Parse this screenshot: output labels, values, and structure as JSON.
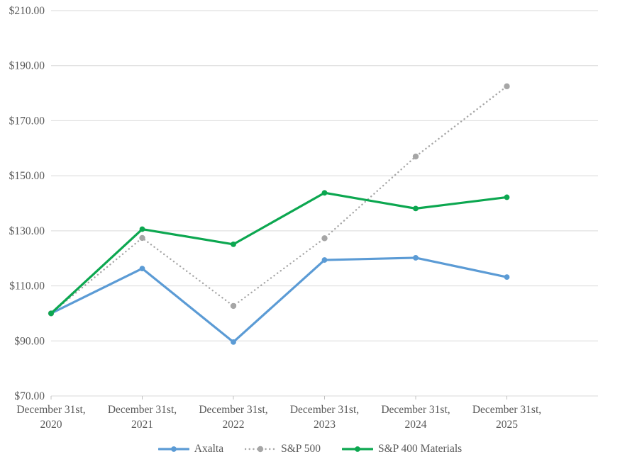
{
  "chart": {
    "background_color": "#FFFFFF",
    "text_color": "#595959",
    "gridline_color": "#D9D9D9",
    "tick_color": "#C0C0C0"
  },
  "chart_data": {
    "type": "line",
    "title": "",
    "xlabel": "",
    "ylabel": "",
    "grid": true,
    "legend_position": "bottom",
    "categories": [
      [
        "December 31st,",
        "2020"
      ],
      [
        "December 31st,",
        "2021"
      ],
      [
        "December 31st,",
        "2022"
      ],
      [
        "December 31st,",
        "2023"
      ],
      [
        "December 31st,",
        "2024"
      ],
      [
        "December 31st,",
        "2025"
      ]
    ],
    "y_axis": {
      "min": 70,
      "max": 210,
      "step": 20,
      "tick_labels": [
        "$70.00",
        "$90.00",
        "$110.00",
        "$130.00",
        "$150.00",
        "$170.00",
        "$190.00",
        "$210.00"
      ]
    },
    "series": [
      {
        "name": "Axalta",
        "color": "#5B9BD5",
        "line_style": "solid",
        "marker": "circle",
        "values": [
          100,
          116.3,
          89.6,
          119.4,
          120.2,
          113.2
        ]
      },
      {
        "name": "S&P 500",
        "color": "#A6A6A6",
        "line_style": "dotted",
        "marker": "circle",
        "values": [
          100,
          127.4,
          102.7,
          127.3,
          157.0,
          182.5
        ]
      },
      {
        "name": "S&P 400 Materials",
        "color": "#0CA750",
        "line_style": "solid",
        "marker": "circle",
        "values": [
          100,
          130.6,
          125.1,
          143.8,
          138.1,
          142.2
        ]
      }
    ]
  }
}
